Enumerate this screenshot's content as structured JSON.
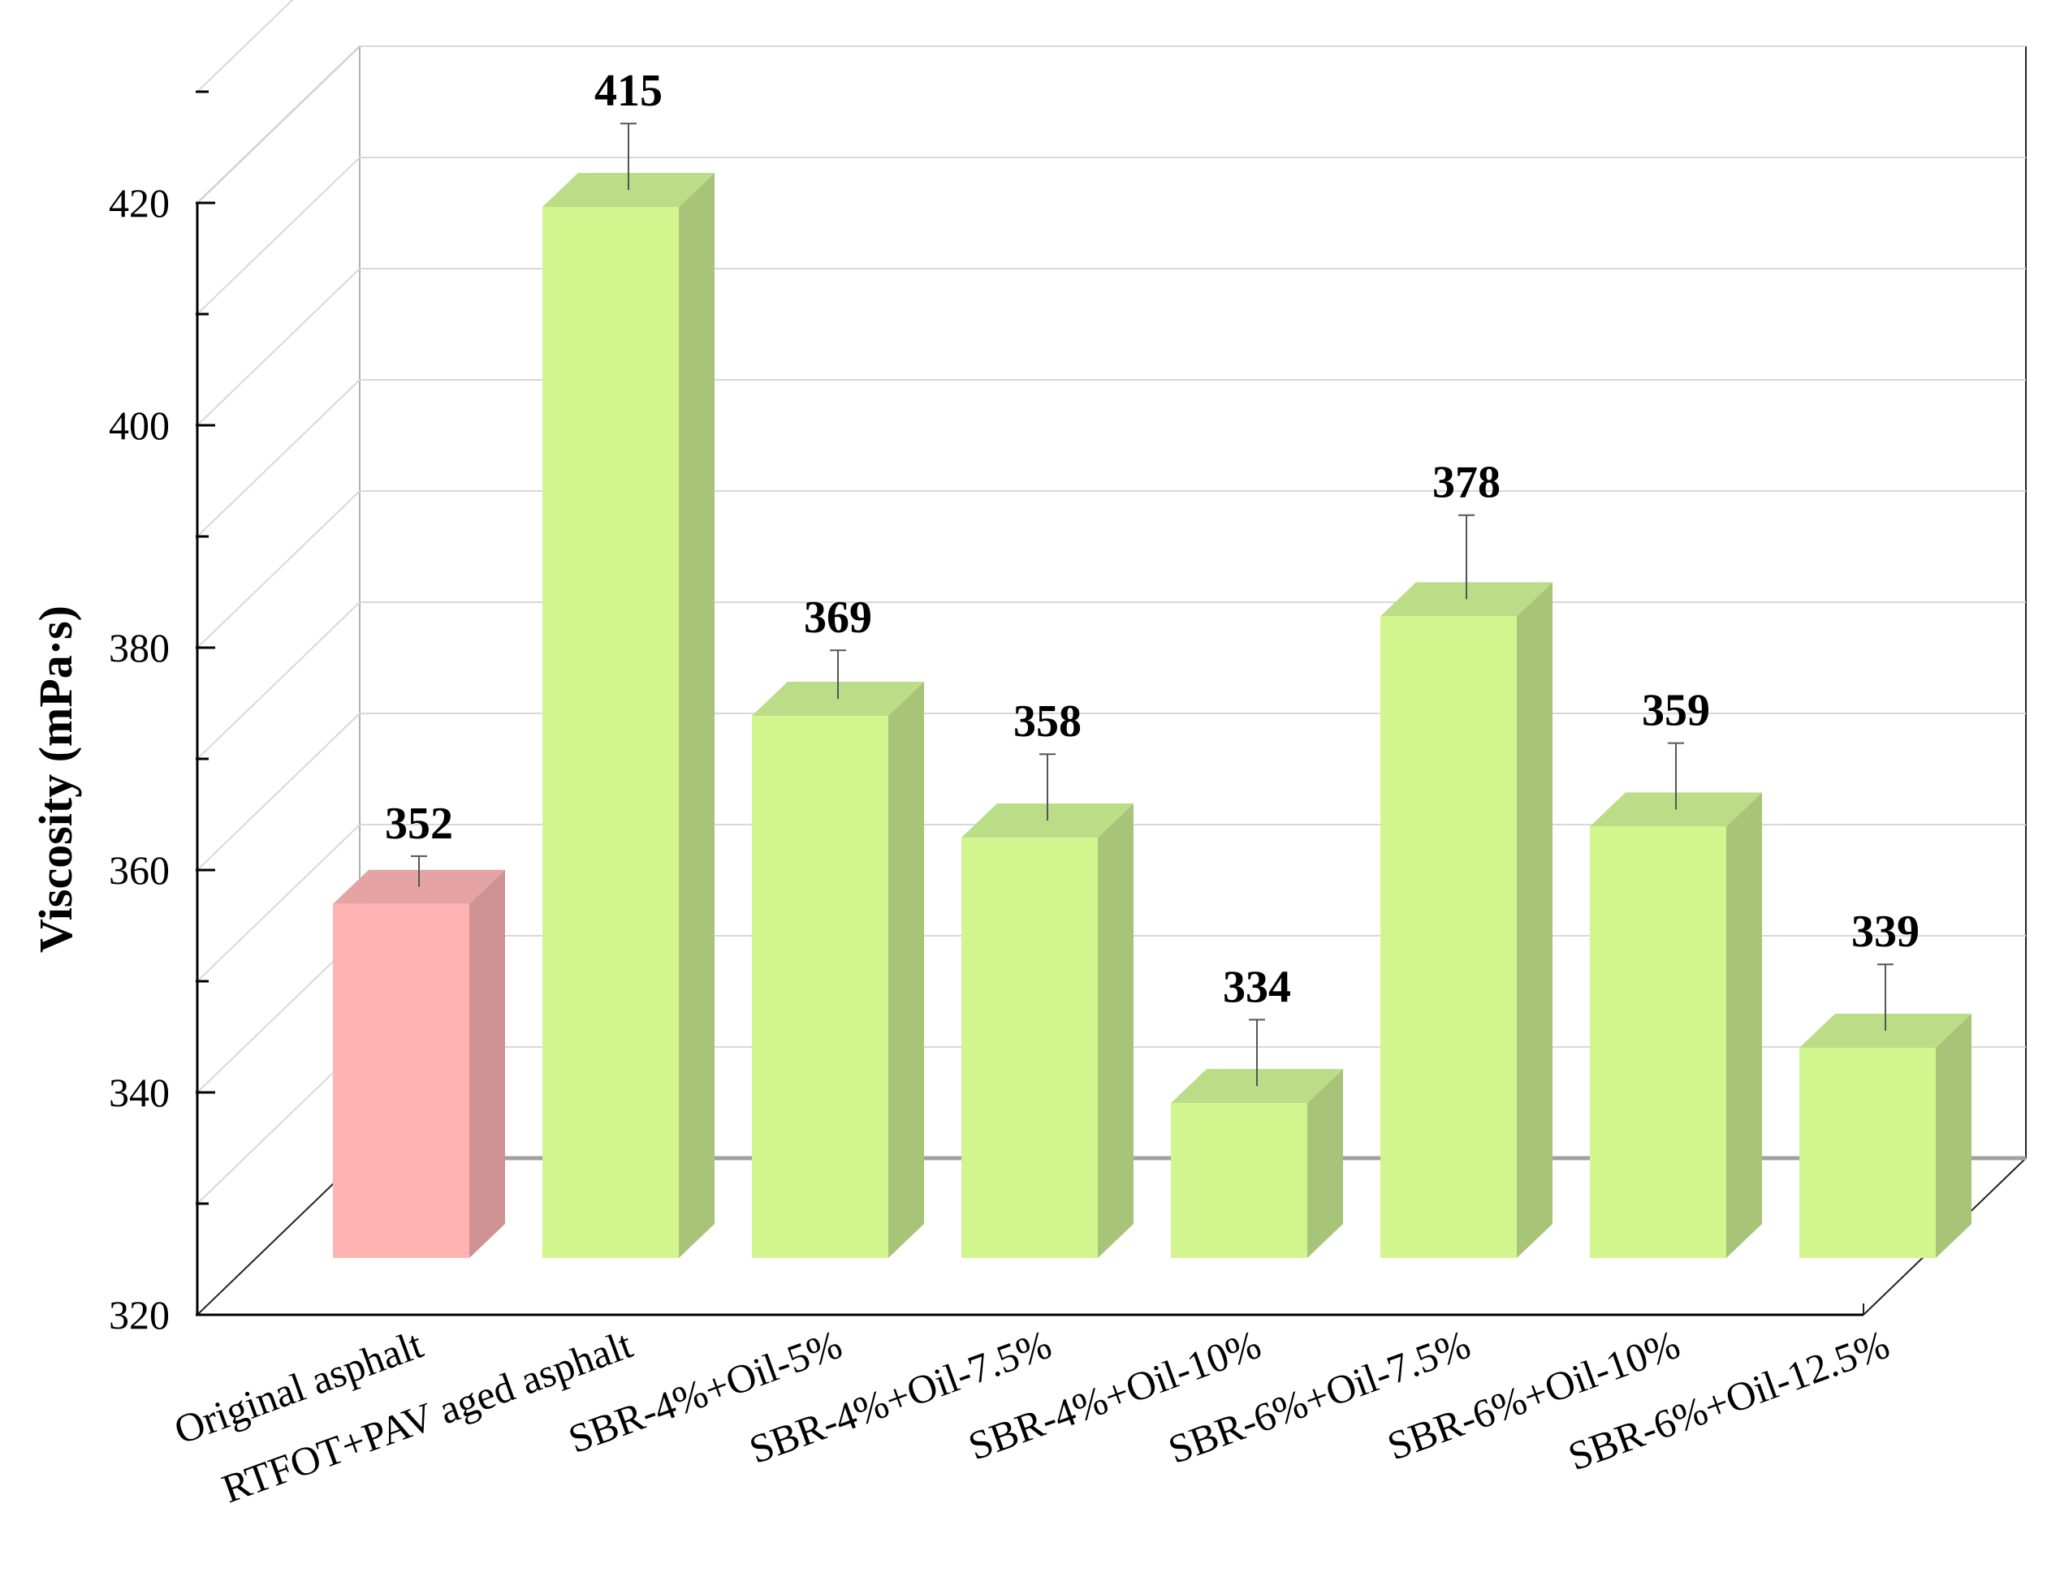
{
  "chart_data": {
    "type": "bar",
    "title": "",
    "xlabel": "",
    "ylabel": "Viscosity (mPa·s)",
    "ylim": [
      320,
      420
    ],
    "yticks": [
      320,
      340,
      360,
      380,
      400,
      420
    ],
    "grid": true,
    "categories": [
      "Original asphalt",
      "RTFOT+PAV aged asphalt",
      "SBR-4%+Oil-5%",
      "SBR-4%+Oil-7.5%",
      "SBR-4%+Oil-10%",
      "SBR-6%+Oil-7.5%",
      "SBR-6%+Oil-10%",
      "SBR-6%+Oil-12.5%"
    ],
    "values": [
      352,
      415,
      369,
      358,
      334,
      378,
      359,
      339
    ],
    "error": [
      1,
      3,
      2,
      3,
      3,
      4,
      3,
      3
    ],
    "value_labels": [
      "352",
      "415",
      "369",
      "358",
      "334",
      "378",
      "359",
      "339"
    ],
    "colors": {
      "original_front": "#FFB3B3",
      "original_side": "#CF9292",
      "original_top": "#E5A3A3",
      "modified_front": "#D2F58E",
      "modified_side": "#A7C478",
      "modified_top": "#BCDD87",
      "grid": "#D8D8D8",
      "axis": "#000000"
    }
  }
}
